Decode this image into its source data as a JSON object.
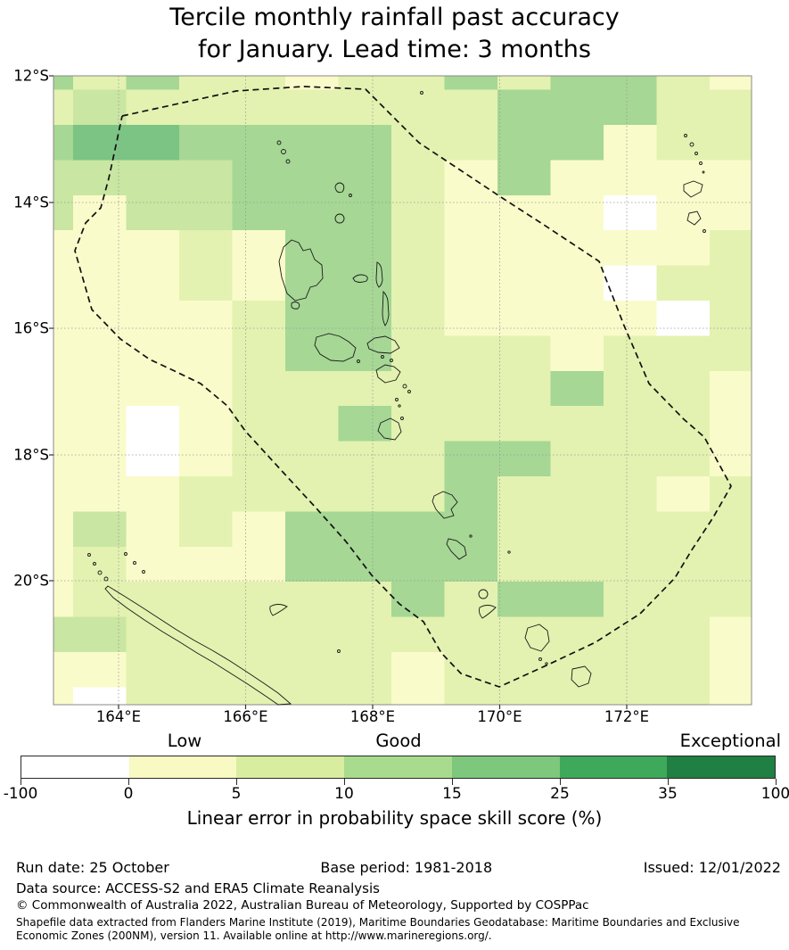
{
  "title": {
    "line1": "Tercile monthly rainfall past accuracy",
    "line2": "for January. Lead time: 3 months"
  },
  "map": {
    "y_tick_labels": [
      "12°S",
      "14°S",
      "16°S",
      "18°S",
      "20°S"
    ],
    "x_tick_labels": [
      "164°E",
      "166°E",
      "168°E",
      "170°E",
      "172°E"
    ]
  },
  "colorbar": {
    "category_labels": [
      "Low",
      "Good",
      "Exceptional"
    ],
    "tick_labels": [
      "-100",
      "0",
      "5",
      "10",
      "15",
      "25",
      "35",
      "100"
    ],
    "axis_label": "Linear error in probability space skill score (%)",
    "segment_colors": [
      "#ffffff",
      "#f8f9c3",
      "#d9eda0",
      "#a9db8e",
      "#7dc87d",
      "#3fa95b",
      "#207f42"
    ]
  },
  "footer": {
    "run_date": "Run date: 25 October",
    "base_period": "Base period: 1981-2018",
    "issued": "Issued: 12/01/2022",
    "data_source": "Data source: ACCESS-S2 and ERA5 Climate Reanalysis",
    "copyright": "© Commonwealth of Australia 2022, Australian Bureau of Meteorology, Supported by COSPPac",
    "shapefile_note_line1": "Shapefile data extracted from Flanders Marine Institute (2019), Maritime Boundaries Geodatabase: Maritime Boundaries and Exclusive",
    "shapefile_note_line2": "Economic Zones (200NM), version 11. Available online at http://www.marineregions.org/."
  },
  "chart_data": {
    "type": "heatmap",
    "title": "Tercile monthly rainfall past accuracy for January. Lead time: 3 months",
    "xlabel": "Linear error in probability space skill score (%)",
    "x_axis_ticks": [
      "164°E",
      "166°E",
      "168°E",
      "170°E",
      "172°E"
    ],
    "y_axis_ticks": [
      "12°S",
      "14°S",
      "16°S",
      "18°S",
      "20°S"
    ],
    "x_range_deg_east": [
      163.0,
      174.0
    ],
    "y_range_deg_south": [
      12.0,
      22.0
    ],
    "grid_on": true,
    "legend_position": "horizontal colorbar below map",
    "colorbar_ticks": [
      -100,
      0,
      5,
      10,
      15,
      25,
      35,
      100
    ],
    "colorbar_categories": [
      "Low",
      "Good",
      "Exceptional"
    ],
    "cell_value_key": {
      "W": "< 0",
      "Y": "0-5",
      "A": "5-10",
      "B": "10-15",
      "C": "15-25",
      "D": "25-35"
    },
    "palette_hex": {
      "W": "#ffffff",
      "Y": "#fafbca",
      "A": "#e3f2b0",
      "B": "#c9e6a2",
      "C": "#a6d795",
      "D": "#7bc483"
    },
    "grid_rows_north_to_south": [
      "CACAAYAACACCAY",
      "ABAAAAAAACCCAA",
      "CDDCCCCAACCYAA",
      "BBBBCCCAYCYYYY",
      "BYBBCCCAYYYWYY",
      "YYYAYCCAYYYYYA",
      "YYYAYCCAYYYWAA",
      "YYYYACCAYYYYWA",
      "YYYYACCAAAYAAA",
      "YYYYAAAAAACAAY",
      "YYWYAACAAAAAAY",
      "YYWYAAAACCAAAY",
      "YYYAAAAACAAAYA",
      "YBYAYCCCCAAAAA",
      "YAYYYCCCCAAAAA",
      "YAAAAAACACCAAA",
      "BBAAAAAAAAAAAY",
      "YYAAAAAYAAAAAY",
      "YWAAAAAYAAAAAY"
    ],
    "overlays": [
      "vanuatu-eez-dashed-boundary",
      "island-coastlines",
      "lat-lon-gridlines"
    ]
  }
}
